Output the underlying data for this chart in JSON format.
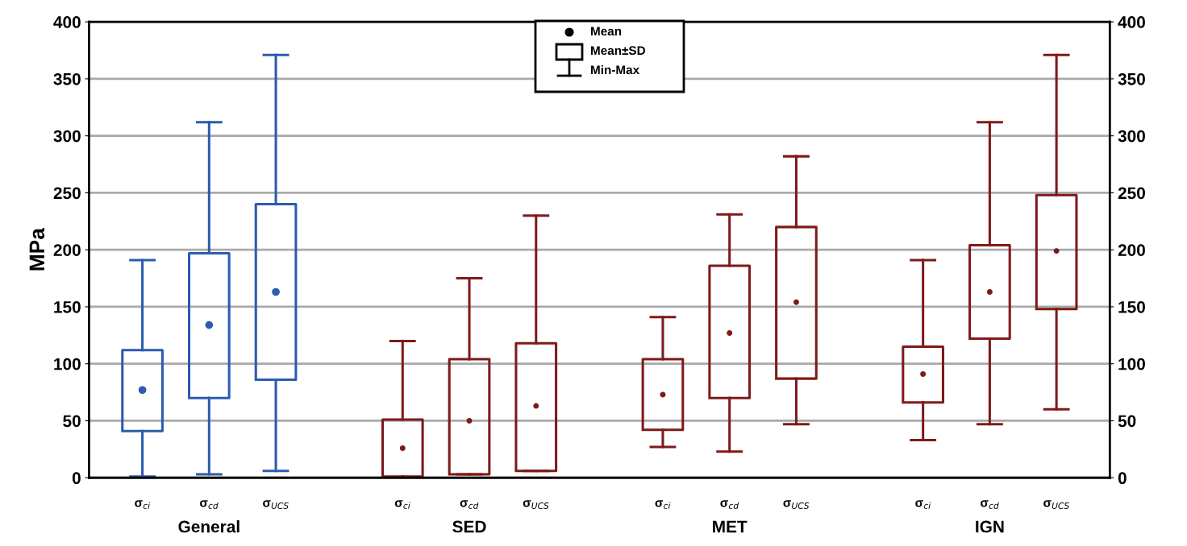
{
  "chart_data": {
    "type": "box",
    "ylabel": "MPa",
    "categories": [
      "σ$_{ci}$",
      "σ$_{cd}$",
      "σ$_{UCS}$",
      "σ$_{ci}$",
      "σ$_{cd}$",
      "σ$_{UCS}$",
      "σ$_{ci}$",
      "σ$_{cd}$",
      "σ$_{UCS}$",
      "σ$_{ci}$",
      "σ$_{cd}$",
      "σ$_{UCS}$"
    ],
    "boxes": [
      {
        "low": 1,
        "q1": 41,
        "mean": 77,
        "q3": 112,
        "high": 191
      },
      {
        "low": 3,
        "q1": 70,
        "mean": 134,
        "q3": 197,
        "high": 312
      },
      {
        "low": 6,
        "q1": 86,
        "mean": 163,
        "q3": 240,
        "high": 371
      },
      {
        "low": 0,
        "q1": 1,
        "mean": 26,
        "q3": 51,
        "high": 120
      },
      {
        "low": 3,
        "q1": 3,
        "mean": 50,
        "q3": 104,
        "high": 175
      },
      {
        "low": 6,
        "q1": 6,
        "mean": 63,
        "q3": 118,
        "high": 230
      },
      {
        "low": 27,
        "q1": 42,
        "mean": 73,
        "q3": 104,
        "high": 141
      },
      {
        "low": 23,
        "q1": 70,
        "mean": 127,
        "q3": 186,
        "high": 231
      },
      {
        "low": 47,
        "q1": 87,
        "mean": 154,
        "q3": 220,
        "high": 282
      },
      {
        "low": 33,
        "q1": 66,
        "mean": 91,
        "q3": 115,
        "high": 191
      },
      {
        "low": 47,
        "q1": 122,
        "mean": 163,
        "q3": 204,
        "high": 312
      },
      {
        "low": 60,
        "q1": 148,
        "mean": 199,
        "q3": 248,
        "high": 371
      }
    ],
    "colors": [
      "#2b5cae",
      "#2b5cae",
      "#2b5cae",
      "#7f1a1a",
      "#7f1a1a",
      "#7f1a1a",
      "#7f1a1a",
      "#7f1a1a",
      "#7f1a1a",
      "#7f1a1a",
      "#7f1a1a",
      "#7f1a1a"
    ],
    "annotations": [
      "General",
      "SED",
      "MET",
      "IGN",
      "Mean",
      "Mean±SD",
      "Min-Max"
    ],
    "ylim": [
      0,
      400
    ],
    "yticks": [
      0,
      50,
      100,
      150,
      200,
      250,
      300,
      350,
      400
    ],
    "y2lim": [
      0,
      400
    ],
    "y2ticks": [
      0,
      50,
      100,
      150,
      200,
      250,
      300,
      350,
      400
    ],
    "grid": "y",
    "marker": "circle"
  }
}
